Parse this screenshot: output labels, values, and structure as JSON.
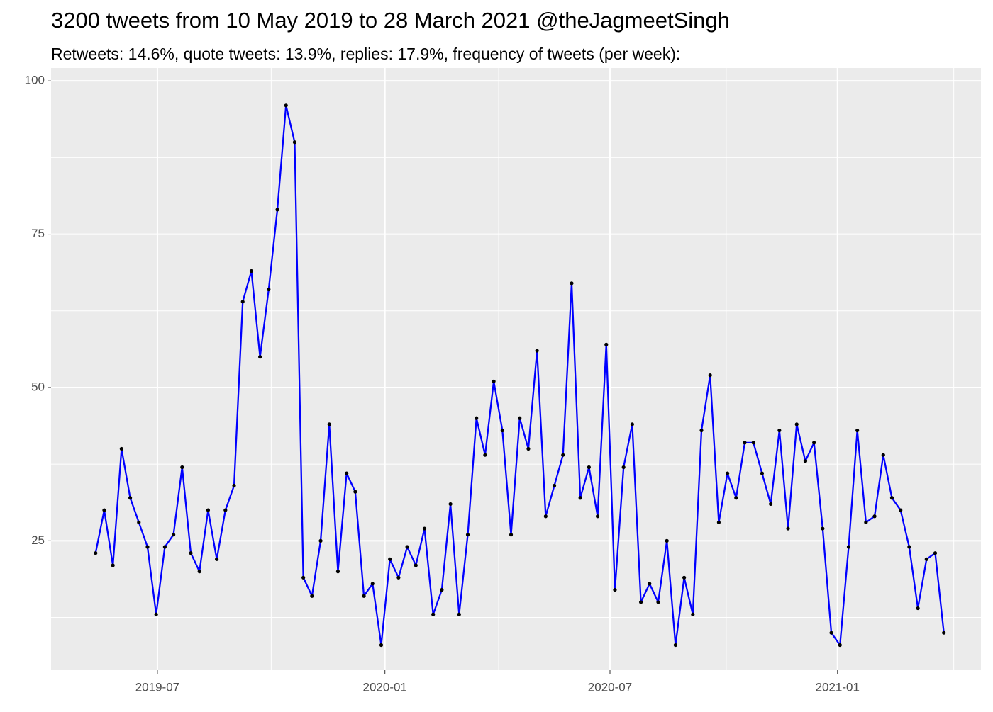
{
  "chart_data": {
    "type": "line",
    "title": "3200 tweets from 10 May 2019 to 28 March 2021 @theJagmeetSingh",
    "subtitle": "Retweets: 14.6%, quote tweets: 13.9%, replies: 17.9%, frequency of tweets (per week):",
    "x": [
      "2019-05-12",
      "2019-05-19",
      "2019-05-26",
      "2019-06-02",
      "2019-06-09",
      "2019-06-16",
      "2019-06-23",
      "2019-06-30",
      "2019-07-07",
      "2019-07-14",
      "2019-07-21",
      "2019-07-28",
      "2019-08-04",
      "2019-08-11",
      "2019-08-18",
      "2019-08-25",
      "2019-09-01",
      "2019-09-08",
      "2019-09-15",
      "2019-09-22",
      "2019-09-29",
      "2019-10-06",
      "2019-10-13",
      "2019-10-20",
      "2019-10-27",
      "2019-11-03",
      "2019-11-10",
      "2019-11-17",
      "2019-11-24",
      "2019-12-01",
      "2019-12-08",
      "2019-12-15",
      "2019-12-22",
      "2019-12-29",
      "2020-01-05",
      "2020-01-12",
      "2020-01-19",
      "2020-01-26",
      "2020-02-02",
      "2020-02-09",
      "2020-02-16",
      "2020-02-23",
      "2020-03-01",
      "2020-03-08",
      "2020-03-15",
      "2020-03-22",
      "2020-03-29",
      "2020-04-05",
      "2020-04-12",
      "2020-04-19",
      "2020-04-26",
      "2020-05-03",
      "2020-05-10",
      "2020-05-17",
      "2020-05-24",
      "2020-05-31",
      "2020-06-07",
      "2020-06-14",
      "2020-06-21",
      "2020-06-28",
      "2020-07-05",
      "2020-07-12",
      "2020-07-19",
      "2020-07-26",
      "2020-08-02",
      "2020-08-09",
      "2020-08-16",
      "2020-08-23",
      "2020-08-30",
      "2020-09-06",
      "2020-09-13",
      "2020-09-20",
      "2020-09-27",
      "2020-10-04",
      "2020-10-11",
      "2020-10-18",
      "2020-10-25",
      "2020-11-01",
      "2020-11-08",
      "2020-11-15",
      "2020-11-22",
      "2020-11-29",
      "2020-12-06",
      "2020-12-13",
      "2020-12-20",
      "2020-12-27",
      "2021-01-03",
      "2021-01-10",
      "2021-01-17",
      "2021-01-24",
      "2021-01-31",
      "2021-02-07",
      "2021-02-14",
      "2021-02-21",
      "2021-02-28",
      "2021-03-07",
      "2021-03-14",
      "2021-03-21",
      "2021-03-28"
    ],
    "series": [
      {
        "color": "#0000ff",
        "point_color": "#000000",
        "values": [
          23,
          30,
          21,
          40,
          32,
          28,
          24,
          13,
          24,
          26,
          37,
          23,
          20,
          30,
          22,
          30,
          34,
          64,
          69,
          55,
          66,
          79,
          96,
          90,
          19,
          16,
          25,
          44,
          20,
          36,
          33,
          16,
          18,
          8,
          22,
          19,
          24,
          21,
          27,
          13,
          17,
          31,
          13,
          26,
          45,
          39,
          51,
          43,
          26,
          45,
          40,
          56,
          29,
          34,
          39,
          67,
          32,
          37,
          29,
          57,
          17,
          37,
          44,
          15,
          18,
          15,
          25,
          8,
          19,
          13,
          43,
          52,
          28,
          36,
          32,
          41,
          41,
          36,
          31,
          43,
          27,
          44,
          38,
          41,
          27,
          10,
          8,
          24,
          43,
          28,
          29,
          39,
          32,
          30,
          24,
          14,
          22,
          23,
          10
        ]
      }
    ],
    "xlim": [
      "2019-04-06",
      "2021-04-27"
    ],
    "xticks": [
      {
        "value": "2019-07-01",
        "label": "2019-07"
      },
      {
        "value": "2020-01-01",
        "label": "2020-01"
      },
      {
        "value": "2020-07-01",
        "label": "2020-07"
      },
      {
        "value": "2021-01-01",
        "label": "2021-01"
      }
    ],
    "ylim": [
      3.9,
      102.1
    ],
    "yticks": [
      25,
      50,
      75,
      100
    ],
    "grid": true
  }
}
